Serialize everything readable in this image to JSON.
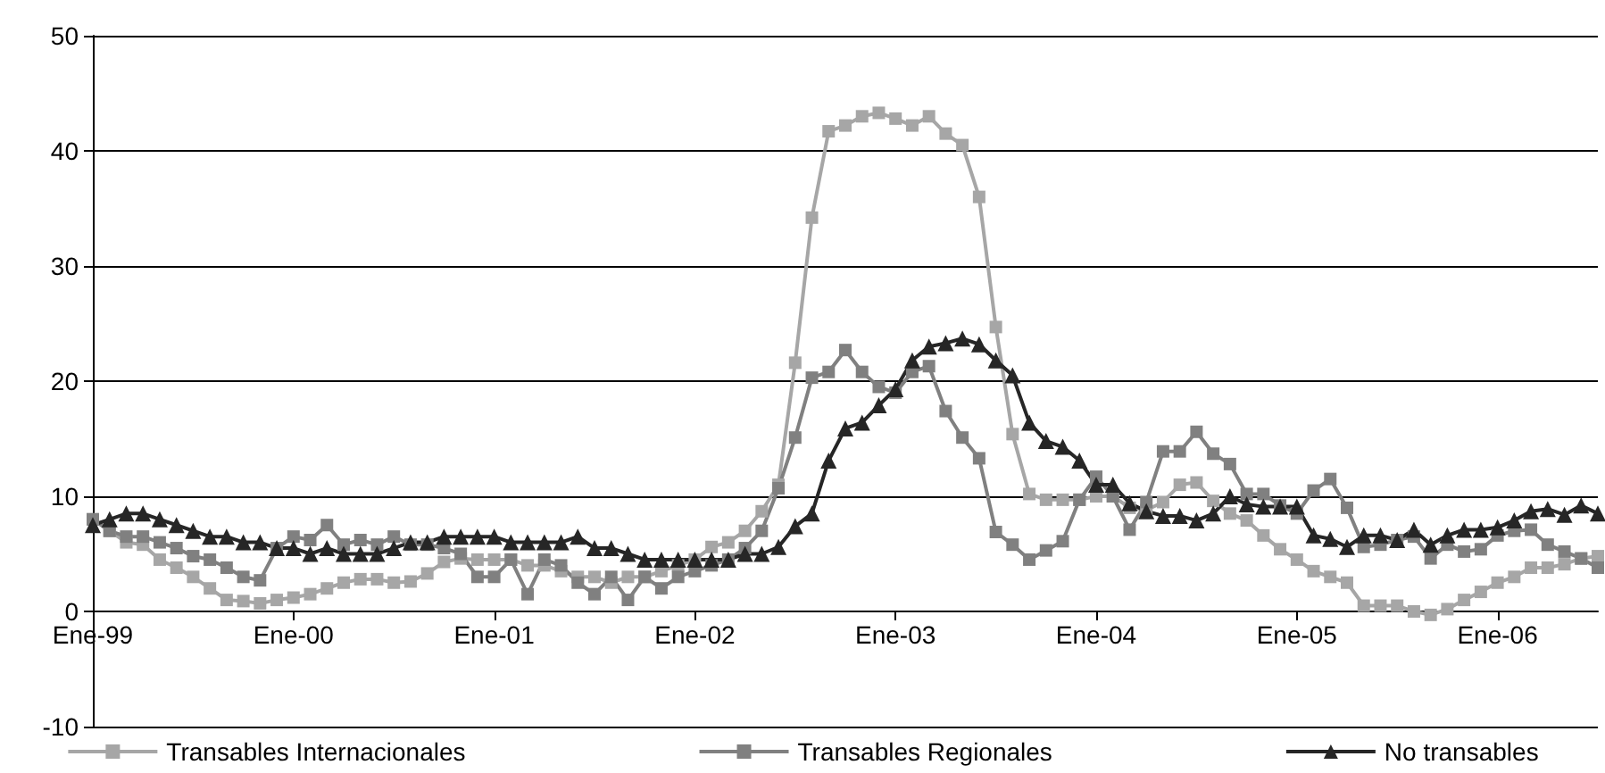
{
  "chart_data": {
    "type": "line",
    "categories": [
      "Ene-99",
      null,
      null,
      null,
      null,
      null,
      null,
      null,
      null,
      null,
      null,
      null,
      "Ene-00",
      null,
      null,
      null,
      null,
      null,
      null,
      null,
      null,
      null,
      null,
      null,
      "Ene-01",
      null,
      null,
      null,
      null,
      null,
      null,
      null,
      null,
      null,
      null,
      null,
      "Ene-02",
      null,
      null,
      null,
      null,
      null,
      null,
      null,
      null,
      null,
      null,
      null,
      "Ene-03",
      null,
      null,
      null,
      null,
      null,
      null,
      null,
      null,
      null,
      null,
      null,
      "Ene-04",
      null,
      null,
      null,
      null,
      null,
      null,
      null,
      null,
      null,
      null,
      null,
      "Ene-05",
      null,
      null,
      null,
      null,
      null,
      null,
      null,
      null,
      null,
      null,
      null,
      "Ene-06",
      null,
      null,
      null,
      null,
      null,
      null
    ],
    "series": [
      {
        "name": "Transables Internacionales",
        "color": "#a6a6a6",
        "marker": "square",
        "values": [
          8,
          7,
          6,
          5.8,
          4.5,
          3.8,
          3,
          2,
          1,
          0.9,
          0.7,
          1,
          1.2,
          1.5,
          2,
          2.5,
          2.8,
          2.8,
          2.5,
          2.6,
          3.3,
          4.3,
          4.6,
          4.5,
          4.5,
          4.5,
          4,
          4,
          3.5,
          3,
          3,
          2.5,
          3,
          3,
          3.5,
          4,
          4.5,
          5.6,
          6,
          7,
          8.7,
          11,
          21.6,
          34.2,
          41.7,
          42.2,
          43,
          43.3,
          42.8,
          42.2,
          43,
          41.5,
          40.5,
          36,
          24.7,
          15.4,
          10.2,
          9.7,
          9.7,
          9.7,
          10,
          10,
          9,
          8.8,
          9.5,
          11,
          11.2,
          9.6,
          8.5,
          7.9,
          6.6,
          5.4,
          4.5,
          3.5,
          3,
          2.5,
          0.5,
          0.5,
          0.5,
          0,
          -0.3,
          0.2,
          1,
          1.7,
          2.5,
          3,
          3.8,
          3.8,
          4.1,
          4.6,
          4.8
        ]
      },
      {
        "name": "Transables Regionales",
        "color": "#808080",
        "marker": "square",
        "values": [
          8,
          7,
          6.5,
          6.5,
          6,
          5.5,
          4.8,
          4.5,
          3.8,
          3,
          2.7,
          5.5,
          6.5,
          6.2,
          7.5,
          5.8,
          6.2,
          5.8,
          6.5,
          5.8,
          5.8,
          5.5,
          5,
          3,
          3,
          4.5,
          1.5,
          4.5,
          4,
          2.5,
          1.5,
          3,
          1,
          3,
          2,
          3,
          3.5,
          4,
          4.5,
          5.5,
          7,
          10.7,
          15.1,
          20.3,
          20.8,
          22.7,
          20.8,
          19.5,
          19,
          20.8,
          21.3,
          17.4,
          15.1,
          13.3,
          6.9,
          5.8,
          4.5,
          5.3,
          6.1,
          9.7,
          11.7,
          10,
          7.1,
          9.5,
          13.9,
          13.9,
          15.6,
          13.7,
          12.8,
          10.2,
          10.2,
          9.2,
          8.5,
          10.5,
          11.5,
          9,
          5.6,
          5.8,
          6.2,
          6.5,
          4.6,
          5.8,
          5.2,
          5.4,
          6.6,
          7,
          7.1,
          5.8,
          5.2,
          4.6,
          3.8
        ]
      },
      {
        "name": "No transables",
        "color": "#262626",
        "marker": "triangle",
        "values": [
          7.5,
          8,
          8.5,
          8.5,
          8,
          7.5,
          7,
          6.5,
          6.5,
          6,
          6,
          5.5,
          5.5,
          5,
          5.5,
          5,
          5,
          5,
          5.5,
          6,
          6,
          6.5,
          6.5,
          6.5,
          6.5,
          6,
          6,
          6,
          6,
          6.5,
          5.5,
          5.5,
          5,
          4.5,
          4.5,
          4.5,
          4.5,
          4.5,
          4.5,
          5,
          5,
          5.6,
          7.4,
          8.5,
          13.1,
          15.9,
          16.4,
          17.9,
          19.3,
          21.8,
          23,
          23.3,
          23.7,
          23.2,
          21.8,
          20.5,
          16.4,
          14.8,
          14.3,
          13.1,
          11,
          11,
          9.4,
          8.7,
          8.3,
          8.3,
          7.9,
          8.5,
          10,
          9.3,
          9.1,
          9.1,
          9.1,
          6.6,
          6.3,
          5.6,
          6.6,
          6.6,
          6.2,
          7.1,
          5.8,
          6.6,
          7.1,
          7.1,
          7.3,
          7.9,
          8.7,
          8.9,
          8.4,
          9.2,
          8.5
        ]
      }
    ],
    "ylim": [
      -10,
      50
    ],
    "yticks": [
      -10,
      0,
      10,
      20,
      30,
      40,
      50
    ],
    "grid": "y",
    "legend": "bottom"
  }
}
